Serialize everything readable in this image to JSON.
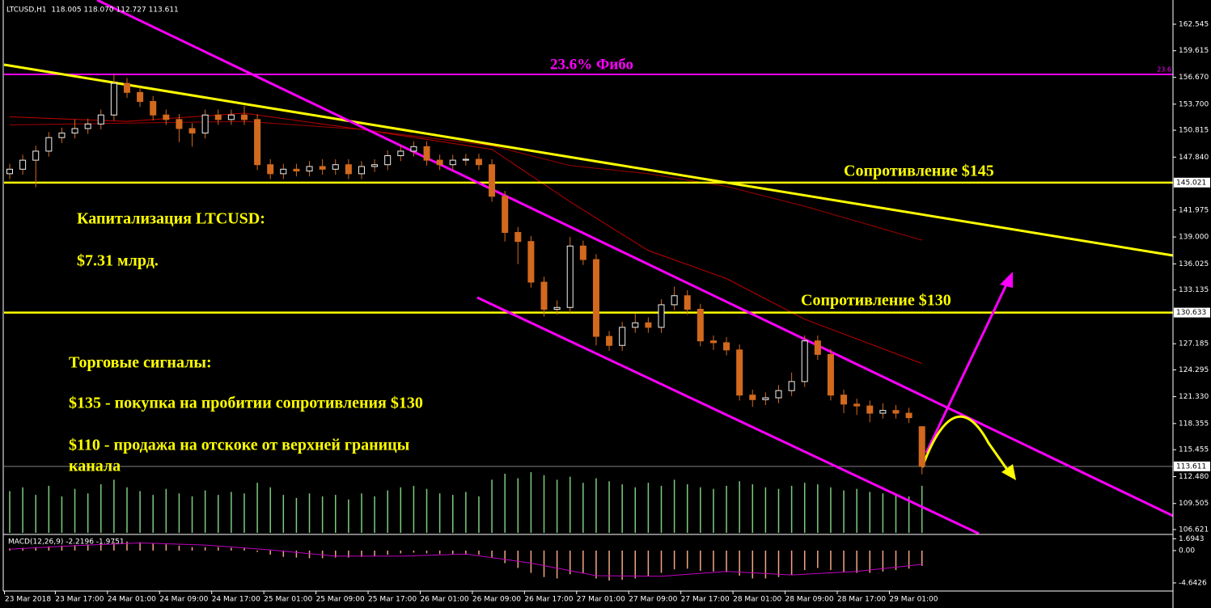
{
  "chart_data": [
    {
      "type": "candlestick",
      "title": "LTCUSD,H1  118.005 118.070 112.727 113.611",
      "open": [
        146.0,
        146.5,
        147.5,
        148.5,
        150.0,
        150.5,
        151.0,
        151.5,
        152.5,
        156.0,
        155.0,
        154.0,
        152.5,
        152.0,
        151.0,
        150.5,
        152.5,
        152.0,
        152.5,
        152.0,
        147.0,
        146.0,
        146.5,
        146.3,
        146.8,
        146.5,
        147.0,
        146.0,
        146.8,
        147.0,
        148.0,
        148.5,
        149.0,
        147.5,
        147.0,
        147.5,
        147.6,
        147.0,
        143.5,
        139.5,
        138.5,
        134.0,
        131.0,
        131.2,
        138.0,
        136.5,
        128.0,
        127.0,
        129.0,
        129.5,
        129.0,
        131.5,
        132.5,
        131.0,
        127.5,
        127.3,
        126.5,
        121.5,
        121.0,
        121.2,
        122.0,
        123.0,
        127.5,
        126.0,
        121.5,
        120.5,
        120.3,
        119.5,
        119.8,
        119.5,
        118.005
      ],
      "high": [
        147.1,
        148.1,
        149.1,
        150.6,
        151.1,
        152.0,
        152.1,
        153.1,
        157.0,
        156.6,
        155.6,
        154.6,
        153.1,
        152.6,
        151.6,
        153.1,
        153.1,
        153.1,
        153.5,
        152.6,
        147.6,
        147.1,
        147.1,
        147.4,
        147.6,
        147.6,
        147.6,
        147.4,
        147.6,
        148.6,
        149.1,
        149.6,
        149.6,
        148.1,
        148.1,
        148.2,
        148.2,
        147.6,
        144.1,
        140.1,
        139.1,
        134.6,
        132.0,
        139.0,
        138.6,
        137.1,
        128.6,
        129.6,
        130.5,
        130.1,
        132.1,
        133.5,
        133.1,
        131.6,
        128.1,
        127.9,
        127.1,
        122.1,
        121.8,
        122.6,
        124.0,
        128.1,
        128.1,
        126.6,
        122.1,
        121.1,
        120.9,
        120.6,
        120.4,
        120.1,
        118.07
      ],
      "low": [
        145.4,
        145.9,
        144.5,
        147.9,
        149.4,
        149.9,
        150.4,
        150.9,
        151.9,
        154.4,
        153.4,
        151.9,
        151.4,
        149.5,
        149.0,
        149.9,
        151.4,
        151.4,
        151.4,
        146.4,
        145.4,
        145.4,
        145.7,
        145.7,
        145.9,
        145.9,
        145.4,
        145.4,
        146.2,
        146.4,
        147.4,
        147.9,
        146.9,
        146.4,
        146.4,
        146.9,
        146.4,
        142.9,
        138.5,
        136.0,
        133.4,
        130.2,
        130.4,
        130.6,
        135.9,
        127.0,
        126.4,
        126.4,
        128.4,
        128.4,
        128.4,
        130.9,
        130.4,
        126.9,
        126.5,
        125.9,
        120.9,
        120.2,
        120.4,
        120.6,
        121.4,
        122.4,
        125.4,
        120.9,
        119.5,
        119.3,
        118.5,
        118.9,
        118.9,
        118.4,
        112.727
      ],
      "close": [
        146.5,
        147.5,
        148.5,
        150.0,
        150.5,
        151.0,
        151.5,
        152.5,
        156.0,
        155.0,
        154.0,
        152.5,
        152.0,
        151.0,
        150.5,
        152.5,
        152.0,
        152.5,
        152.0,
        147.0,
        146.0,
        146.5,
        146.3,
        146.8,
        146.5,
        147.0,
        146.0,
        146.8,
        147.0,
        148.0,
        148.5,
        149.0,
        147.5,
        147.0,
        147.5,
        147.6,
        147.0,
        143.5,
        139.5,
        138.5,
        134.0,
        131.0,
        131.2,
        138.0,
        136.5,
        128.0,
        127.0,
        129.0,
        129.5,
        129.0,
        131.5,
        132.5,
        131.0,
        127.5,
        127.3,
        126.5,
        121.5,
        121.0,
        121.2,
        122.0,
        123.0,
        127.5,
        126.0,
        121.5,
        120.5,
        120.3,
        119.5,
        119.8,
        119.5,
        119.0,
        113.611
      ],
      "up_color": "#f0f0f0",
      "down_color": "#d2691e",
      "wick_color": "#d2691e",
      "volumes": [
        55,
        60,
        50,
        62,
        48,
        58,
        52,
        64,
        70,
        60,
        55,
        50,
        58,
        52,
        48,
        56,
        50,
        54,
        52,
        66,
        60,
        50,
        46,
        52,
        48,
        50,
        44,
        52,
        48,
        56,
        60,
        62,
        58,
        52,
        50,
        54,
        48,
        70,
        78,
        72,
        80,
        76,
        70,
        74,
        66,
        72,
        68,
        64,
        60,
        66,
        62,
        70,
        64,
        60,
        58,
        62,
        68,
        64,
        60,
        58,
        62,
        66,
        64,
        60,
        56,
        58,
        54,
        52,
        50,
        48,
        62
      ],
      "volume_color": "#7ccd7c",
      "moving_averages": [
        {
          "x": [
            0,
            9,
            18,
            27,
            37,
            43,
            49,
            55,
            61,
            70
          ],
          "values": [
            152.3,
            151.8,
            152.7,
            150.9,
            148.7,
            142.9,
            137.5,
            134.4,
            129.9,
            125.0
          ],
          "color": "#c00000"
        },
        {
          "x": [
            0,
            9,
            18,
            27,
            37,
            43,
            49,
            55,
            61,
            70
          ],
          "values": [
            151.4,
            151.6,
            151.8,
            150.9,
            149.1,
            146.9,
            146.0,
            144.6,
            142.4,
            138.65
          ],
          "color": "#a00000"
        }
      ],
      "ylim": [
        106.17,
        164.78
      ],
      "yticks": [
        162.545,
        159.615,
        {
          "value": 156.67,
          "label": "156.670"
        },
        {
          "value": 153.7,
          "label": "153.700"
        },
        150.815,
        {
          "value": 147.84,
          "label": "147.840"
        },
        141.975,
        {
          "value": 139,
          "label": "139.000"
        },
        136.025,
        133.135,
        127.185,
        124.295,
        {
          "value": 121.33,
          "label": "121.330"
        },
        118.355,
        115.455,
        {
          "value": 112.48,
          "label": "112.480"
        },
        109.505,
        106.621
      ],
      "xticks": [
        {
          "value": -0.4,
          "label": "23 Mar 2018"
        },
        {
          "value": 3.5,
          "label": "23 Mar 17:00"
        },
        {
          "value": 7.5,
          "label": "24 Mar 01:00"
        },
        {
          "value": 11.5,
          "label": "24 Mar 09:00"
        },
        {
          "value": 15.5,
          "label": "24 Mar 17:00"
        },
        {
          "value": 19.5,
          "label": "25 Mar 01:00"
        },
        {
          "value": 23.5,
          "label": "25 Mar 09:00"
        },
        {
          "value": 27.5,
          "label": "25 Mar 17:00"
        },
        {
          "value": 31.5,
          "label": "26 Mar 01:00"
        },
        {
          "value": 35.5,
          "label": "26 Mar 09:00"
        },
        {
          "value": 39.5,
          "label": "26 Mar 17:00"
        },
        {
          "value": 43.5,
          "label": "27 Mar 01:00"
        },
        {
          "value": 47.5,
          "label": "27 Mar 09:00"
        },
        {
          "value": 51.5,
          "label": "27 Mar 17:00"
        },
        {
          "value": 55.5,
          "label": "28 Mar 01:00"
        },
        {
          "value": 59.5,
          "label": "28 Mar 09:00"
        },
        {
          "value": 63.5,
          "label": "28 Mar 17:00"
        },
        {
          "value": 67.5,
          "label": "29 Mar 01:00"
        }
      ],
      "fibo": {
        "value": 157.0,
        "label": "23.6",
        "color": "#ff00ff"
      },
      "levels": [
        {
          "value": 145.021,
          "label": "145.021",
          "color": "#ffff00"
        },
        {
          "value": 130.633,
          "label": "130.633",
          "color": "#ffff00"
        }
      ],
      "last_price": {
        "value": 113.611,
        "label": "113.611",
        "color": "#808080"
      },
      "annotations": [
        "23.6% Фибо",
        "Сопротивление $145",
        "Сопротивление $130",
        "Капитализация LTCUSD:",
        "$7.31 млрд.",
        "Торговые сигналы:",
        "$135 - покупка на пробитии сопротивления $130",
        "$110 - продажа на отскоке от верхней границы",
        "канала"
      ]
    },
    {
      "type": "macd",
      "title": "MACD(12,26,9) -2.2196 -1.9751",
      "values": [
        0.3,
        0.4,
        0.5,
        0.6,
        0.7,
        0.8,
        0.9,
        1.0,
        1.2,
        1.3,
        1.2,
        1.0,
        0.9,
        0.7,
        0.5,
        0.5,
        0.5,
        0.4,
        0.4,
        -0.2,
        -0.6,
        -0.9,
        -1.0,
        -1.1,
        -1.1,
        -1.0,
        -1.0,
        -0.9,
        -0.8,
        -0.6,
        -0.4,
        -0.3,
        -0.4,
        -0.5,
        -0.5,
        -0.6,
        -0.6,
        -1.0,
        -1.8,
        -2.5,
        -3.2,
        -3.8,
        -4.0,
        -3.4,
        -3.3,
        -4.0,
        -4.3,
        -4.2,
        -4.0,
        -3.7,
        -3.2,
        -2.7,
        -2.6,
        -2.9,
        -3.0,
        -3.1,
        -3.6,
        -4.0,
        -4.0,
        -3.8,
        -3.5,
        -2.8,
        -2.5,
        -2.8,
        -3.1,
        -3.2,
        -3.2,
        -3.0,
        -2.8,
        -2.6,
        -2.2
      ],
      "color": "#f4a582",
      "signal": {
        "x": [
          0,
          5,
          10,
          15,
          20,
          25,
          30,
          35,
          40,
          45,
          50,
          55,
          60,
          65,
          70
        ],
        "values": [
          0.2,
          0.7,
          1.1,
          0.8,
          0.1,
          -0.8,
          -0.8,
          -0.5,
          -1.8,
          -3.6,
          -3.7,
          -3.0,
          -3.5,
          -3.0,
          -1.9751
        ],
        "color": "#c000c0"
      },
      "ylim": [
        -5.69,
        2.2
      ],
      "yticks": [
        1.6943,
        {
          "value": 0,
          "label": "0.00"
        },
        -4.6426
      ]
    }
  ]
}
